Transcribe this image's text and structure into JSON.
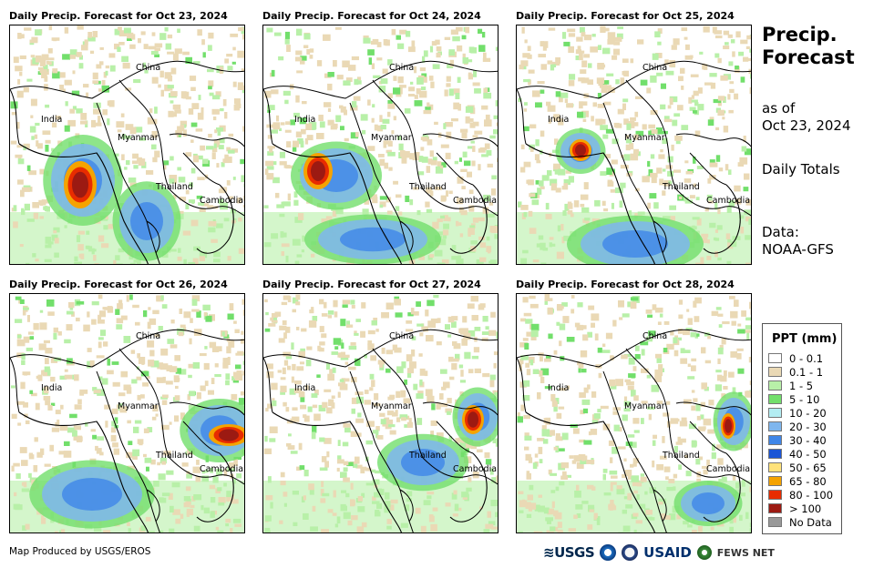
{
  "panels": [
    {
      "title": "Daily Precip. Forecast for Oct 23, 2024",
      "col": 0,
      "row": 0,
      "heavy": [
        {
          "cx": 77,
          "cy": 175,
          "rx": 18,
          "ry": 26
        }
      ],
      "mod": [
        {
          "cx": 150,
          "cy": 215,
          "rx": 30,
          "ry": 35
        },
        {
          "cx": 80,
          "cy": 170,
          "rx": 35,
          "ry": 40
        }
      ]
    },
    {
      "title": "Daily Precip. Forecast for Oct 24, 2024",
      "col": 1,
      "row": 0,
      "heavy": [
        {
          "cx": 60,
          "cy": 160,
          "rx": 16,
          "ry": 20
        }
      ],
      "mod": [
        {
          "cx": 80,
          "cy": 165,
          "rx": 40,
          "ry": 30
        },
        {
          "cx": 120,
          "cy": 235,
          "rx": 60,
          "ry": 22
        }
      ]
    },
    {
      "title": "Daily Precip. Forecast for Oct 25, 2024",
      "col": 2,
      "row": 0,
      "heavy": [
        {
          "cx": 70,
          "cy": 137,
          "rx": 12,
          "ry": 12
        }
      ],
      "mod": [
        {
          "cx": 70,
          "cy": 138,
          "rx": 22,
          "ry": 20
        },
        {
          "cx": 130,
          "cy": 240,
          "rx": 60,
          "ry": 25
        }
      ]
    },
    {
      "title": "Daily Precip. Forecast for Oct 26, 2024",
      "col": 0,
      "row": 1,
      "heavy": [
        {
          "cx": 240,
          "cy": 155,
          "rx": 22,
          "ry": 12
        }
      ],
      "mod": [
        {
          "cx": 230,
          "cy": 150,
          "rx": 35,
          "ry": 28
        },
        {
          "cx": 90,
          "cy": 220,
          "rx": 55,
          "ry": 30
        }
      ]
    },
    {
      "title": "Daily Precip. Forecast for Oct 27, 2024",
      "col": 1,
      "row": 1,
      "heavy": [
        {
          "cx": 230,
          "cy": 138,
          "rx": 12,
          "ry": 16
        }
      ],
      "mod": [
        {
          "cx": 235,
          "cy": 135,
          "rx": 22,
          "ry": 26
        },
        {
          "cx": 175,
          "cy": 185,
          "rx": 40,
          "ry": 25
        }
      ]
    },
    {
      "title": "Daily Precip. Forecast for Oct 28, 2024",
      "col": 2,
      "row": 1,
      "heavy": [
        {
          "cx": 232,
          "cy": 145,
          "rx": 8,
          "ry": 14
        }
      ],
      "mod": [
        {
          "cx": 238,
          "cy": 140,
          "rx": 18,
          "ry": 26
        },
        {
          "cx": 210,
          "cy": 230,
          "rx": 30,
          "ry": 20
        }
      ]
    }
  ],
  "map_labels": {
    "china": "China",
    "india": "India",
    "myanmar": "Myanmar",
    "thailand": "Thailand",
    "cambodia": "Cambodia"
  },
  "sidebar": {
    "title_line1": "Precip.",
    "title_line2": "Forecast",
    "asof_line1": "as of",
    "asof_line2": "Oct 23, 2024",
    "totals": "Daily Totals",
    "data_line1": "Data:",
    "data_line2": "NOAA-GFS"
  },
  "legend": {
    "title": "PPT (mm)",
    "items": [
      {
        "label": "0 - 0.1",
        "color": "#ffffff"
      },
      {
        "label": "0.1 - 1",
        "color": "#ead9b5"
      },
      {
        "label": "1 - 5",
        "color": "#b8f0a8"
      },
      {
        "label": "5 - 10",
        "color": "#72df6b"
      },
      {
        "label": "10 - 20",
        "color": "#b3edf2"
      },
      {
        "label": "20 - 30",
        "color": "#7fb6ee"
      },
      {
        "label": "30 - 40",
        "color": "#3f86e8"
      },
      {
        "label": "40 - 50",
        "color": "#1b55d6"
      },
      {
        "label": "50 - 65",
        "color": "#ffe27a"
      },
      {
        "label": "65 - 80",
        "color": "#f5a300"
      },
      {
        "label": "80 - 100",
        "color": "#e82c00"
      },
      {
        "label": "> 100",
        "color": "#9c1a12"
      },
      {
        "label": "No Data",
        "color": "#999999"
      }
    ]
  },
  "footer": {
    "credit": "Map Produced by USGS/EROS"
  },
  "logos": {
    "usgs": "≋USGS",
    "usaid": "USAID",
    "fews": "FEWS NET"
  }
}
